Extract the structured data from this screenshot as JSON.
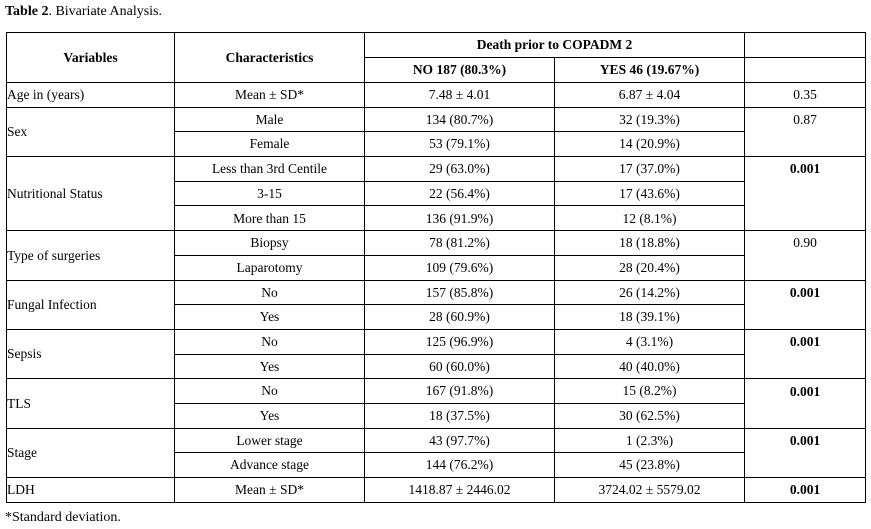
{
  "caption": {
    "label": "Table 2",
    "text": ". Bivariate Analysis."
  },
  "headers": {
    "variables": "Variables",
    "characteristics": "Characteristics",
    "group": "Death prior to COPADM 2",
    "no": "NO 187 (80.3%)",
    "yes": "YES 46 (19.67%)"
  },
  "rows": [
    {
      "variable": "Age in (years)",
      "items": [
        {
          "char": "Mean ± SD*",
          "no": "7.48 ± 4.01",
          "yes": "6.87 ± 4.04",
          "p": "0.35",
          "sig": false
        }
      ]
    },
    {
      "variable": "Sex",
      "items": [
        {
          "char": "Male",
          "no": "134 (80.7%)",
          "yes": "32 (19.3%)",
          "p": "0.87",
          "sig": false
        },
        {
          "char": "Female",
          "no": "53 (79.1%)",
          "yes": "14 (20.9%)",
          "p": "",
          "sig": false
        }
      ]
    },
    {
      "variable": "Nutritional Status",
      "items": [
        {
          "char": "Less than 3rd Centile",
          "no": "29 (63.0%)",
          "yes": "17 (37.0%)",
          "p": "0.001",
          "sig": true
        },
        {
          "char": "3-15",
          "no": "22 (56.4%)",
          "yes": "17 (43.6%)",
          "p": "",
          "sig": false
        },
        {
          "char": "More than 15",
          "no": "136 (91.9%)",
          "yes": "12 (8.1%)",
          "p": "",
          "sig": false
        }
      ]
    },
    {
      "variable": "Type of surgeries",
      "items": [
        {
          "char": "Biopsy",
          "no": "78 (81.2%)",
          "yes": "18 (18.8%)",
          "p": "0.90",
          "sig": false
        },
        {
          "char": "Laparotomy",
          "no": "109 (79.6%)",
          "yes": "28 (20.4%)",
          "p": "",
          "sig": false
        }
      ]
    },
    {
      "variable": "Fungal Infection",
      "items": [
        {
          "char": "No",
          "no": "157 (85.8%)",
          "yes": "26 (14.2%)",
          "p": "0.001",
          "sig": true
        },
        {
          "char": "Yes",
          "no": "28 (60.9%)",
          "yes": "18 (39.1%)",
          "p": "",
          "sig": false
        }
      ]
    },
    {
      "variable": "Sepsis",
      "items": [
        {
          "char": "No",
          "no": "125 (96.9%)",
          "yes": "4 (3.1%)",
          "p": "0.001",
          "sig": true
        },
        {
          "char": "Yes",
          "no": "60 (60.0%)",
          "yes": "40 (40.0%)",
          "p": "",
          "sig": false
        }
      ]
    },
    {
      "variable": "TLS",
      "items": [
        {
          "char": "No",
          "no": "167 (91.8%)",
          "yes": "15 (8.2%)",
          "p": "0.001",
          "sig": true
        },
        {
          "char": "Yes",
          "no": "18 (37.5%)",
          "yes": "30 (62.5%)",
          "p": "",
          "sig": false
        }
      ]
    },
    {
      "variable": "Stage",
      "items": [
        {
          "char": "Lower stage",
          "no": "43 (97.7%)",
          "yes": "1 (2.3%)",
          "p": "0.001",
          "sig": true
        },
        {
          "char": "Advance stage",
          "no": "144 (76.2%)",
          "yes": "45 (23.8%)",
          "p": "",
          "sig": false
        }
      ]
    },
    {
      "variable": "LDH",
      "items": [
        {
          "char": "Mean ± SD*",
          "no": "1418.87 ± 2446.02",
          "yes": "3724.02 ± 5579.02",
          "p": "0.001",
          "sig": true
        }
      ]
    }
  ],
  "footnote": "*Standard deviation."
}
